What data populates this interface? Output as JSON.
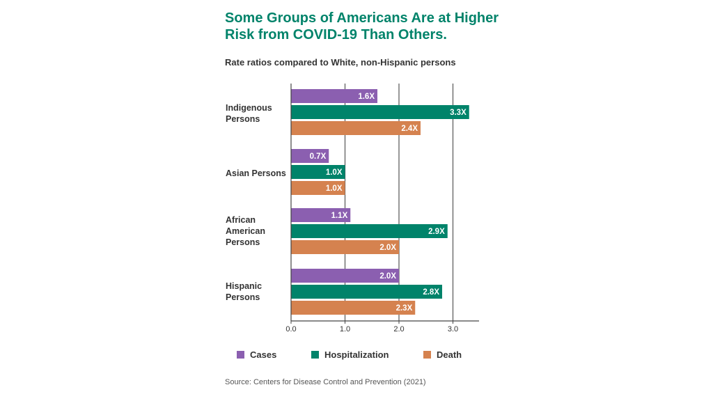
{
  "title": "Some Groups of Americans Are at Higher Risk from COVID-19 Than Others.",
  "subtitle": "Rate ratios compared to White, non-Hispanic persons",
  "source": "Source: Centers for Disease Control and Prevention (2021)",
  "colors": {
    "cases": "#8b5fb0",
    "hospitalization": "#00836a",
    "death": "#d5824f",
    "axis": "#444444",
    "grid": "#555555"
  },
  "chart_data": {
    "type": "bar",
    "orientation": "horizontal",
    "categories": [
      "Indigenous Persons",
      "Asian Persons",
      "African American Persons",
      "Hispanic Persons"
    ],
    "series": [
      {
        "name": "Cases",
        "values": [
          1.6,
          0.7,
          1.1,
          2.0
        ],
        "labels": [
          "1.6X",
          "0.7X",
          "1.1X",
          "2.0X"
        ]
      },
      {
        "name": "Hospitalization",
        "values": [
          3.3,
          1.0,
          2.9,
          2.8
        ],
        "labels": [
          "3.3X",
          "1.0X",
          "2.9X",
          "2.8X"
        ]
      },
      {
        "name": "Death",
        "values": [
          2.4,
          1.0,
          2.0,
          2.3
        ],
        "labels": [
          "2.4X",
          "1.0X",
          "2.0X",
          "2.3X"
        ]
      }
    ],
    "xticks": [
      "0.0",
      "1.0",
      "2.0",
      "3.0"
    ],
    "xlim": [
      0,
      3.5
    ],
    "grid": true,
    "legend": "bottom"
  }
}
